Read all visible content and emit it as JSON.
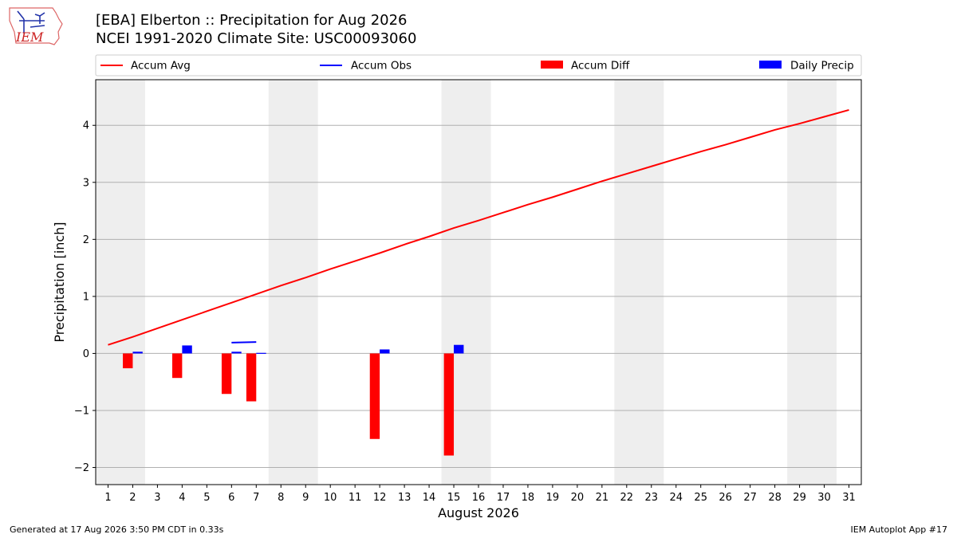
{
  "header": {
    "title_line1": "[EBA] Elberton :: Precipitation for Aug 2026",
    "title_line2": "NCEI 1991-2020 Climate Site: USC00093060",
    "logo_text": "IEM"
  },
  "footer": {
    "left": "Generated at 17 Aug 2026 3:50 PM CDT in 0.33s",
    "right": "IEM Autoplot App #17"
  },
  "chart_data": {
    "type": "bar",
    "xlabel": "August 2026",
    "ylabel": "Precipitation [inch]",
    "xlim": [
      0.5,
      31.5
    ],
    "ylim": [
      -2.3,
      4.8
    ],
    "yticks": [
      -2,
      -1,
      0,
      1,
      2,
      3,
      4
    ],
    "xticks": [
      1,
      2,
      3,
      4,
      5,
      6,
      7,
      8,
      9,
      10,
      11,
      12,
      13,
      14,
      15,
      16,
      17,
      18,
      19,
      20,
      21,
      22,
      23,
      24,
      25,
      26,
      27,
      28,
      29,
      30,
      31
    ],
    "grid": "y",
    "weekend_shading": [
      [
        1,
        2
      ],
      [
        8,
        9
      ],
      [
        15,
        16
      ],
      [
        22,
        23
      ],
      [
        29,
        30
      ]
    ],
    "legend": {
      "placement": "top",
      "entries": [
        {
          "name": "Accum Avg",
          "kind": "line",
          "color": "#ff0000"
        },
        {
          "name": "Accum Obs",
          "kind": "line",
          "color": "#0000ff"
        },
        {
          "name": "Accum Diff",
          "kind": "bar",
          "color": "#ff0000"
        },
        {
          "name": "Daily Precip",
          "kind": "bar",
          "color": "#0000ff"
        }
      ]
    },
    "accum_avg": {
      "x": [
        1,
        2,
        3,
        4,
        5,
        6,
        7,
        8,
        9,
        10,
        11,
        12,
        13,
        14,
        15,
        16,
        17,
        18,
        19,
        20,
        21,
        22,
        23,
        24,
        25,
        26,
        27,
        28,
        29,
        30,
        31
      ],
      "values": [
        0.15,
        0.29,
        0.44,
        0.59,
        0.74,
        0.89,
        1.04,
        1.19,
        1.33,
        1.48,
        1.62,
        1.76,
        1.91,
        2.05,
        2.2,
        2.33,
        2.47,
        2.61,
        2.74,
        2.88,
        3.02,
        3.15,
        3.28,
        3.41,
        3.54,
        3.66,
        3.79,
        3.92,
        4.03,
        4.15,
        4.27
      ],
      "color": "#ff0000"
    },
    "accum_obs": {
      "x": [
        6,
        7
      ],
      "values": [
        0.19,
        0.2
      ],
      "color": "#0000ff"
    },
    "accum_diff": {
      "x": [
        2,
        4,
        6,
        7,
        12,
        15
      ],
      "values": [
        -0.26,
        -0.43,
        -0.71,
        -0.84,
        -1.5,
        -1.79
      ],
      "color": "#ff0000"
    },
    "daily_precip": {
      "x": [
        2,
        4,
        6,
        7,
        12,
        15
      ],
      "values": [
        0.03,
        0.14,
        0.03,
        0.01,
        0.07,
        0.15
      ],
      "color": "#0000ff"
    }
  }
}
